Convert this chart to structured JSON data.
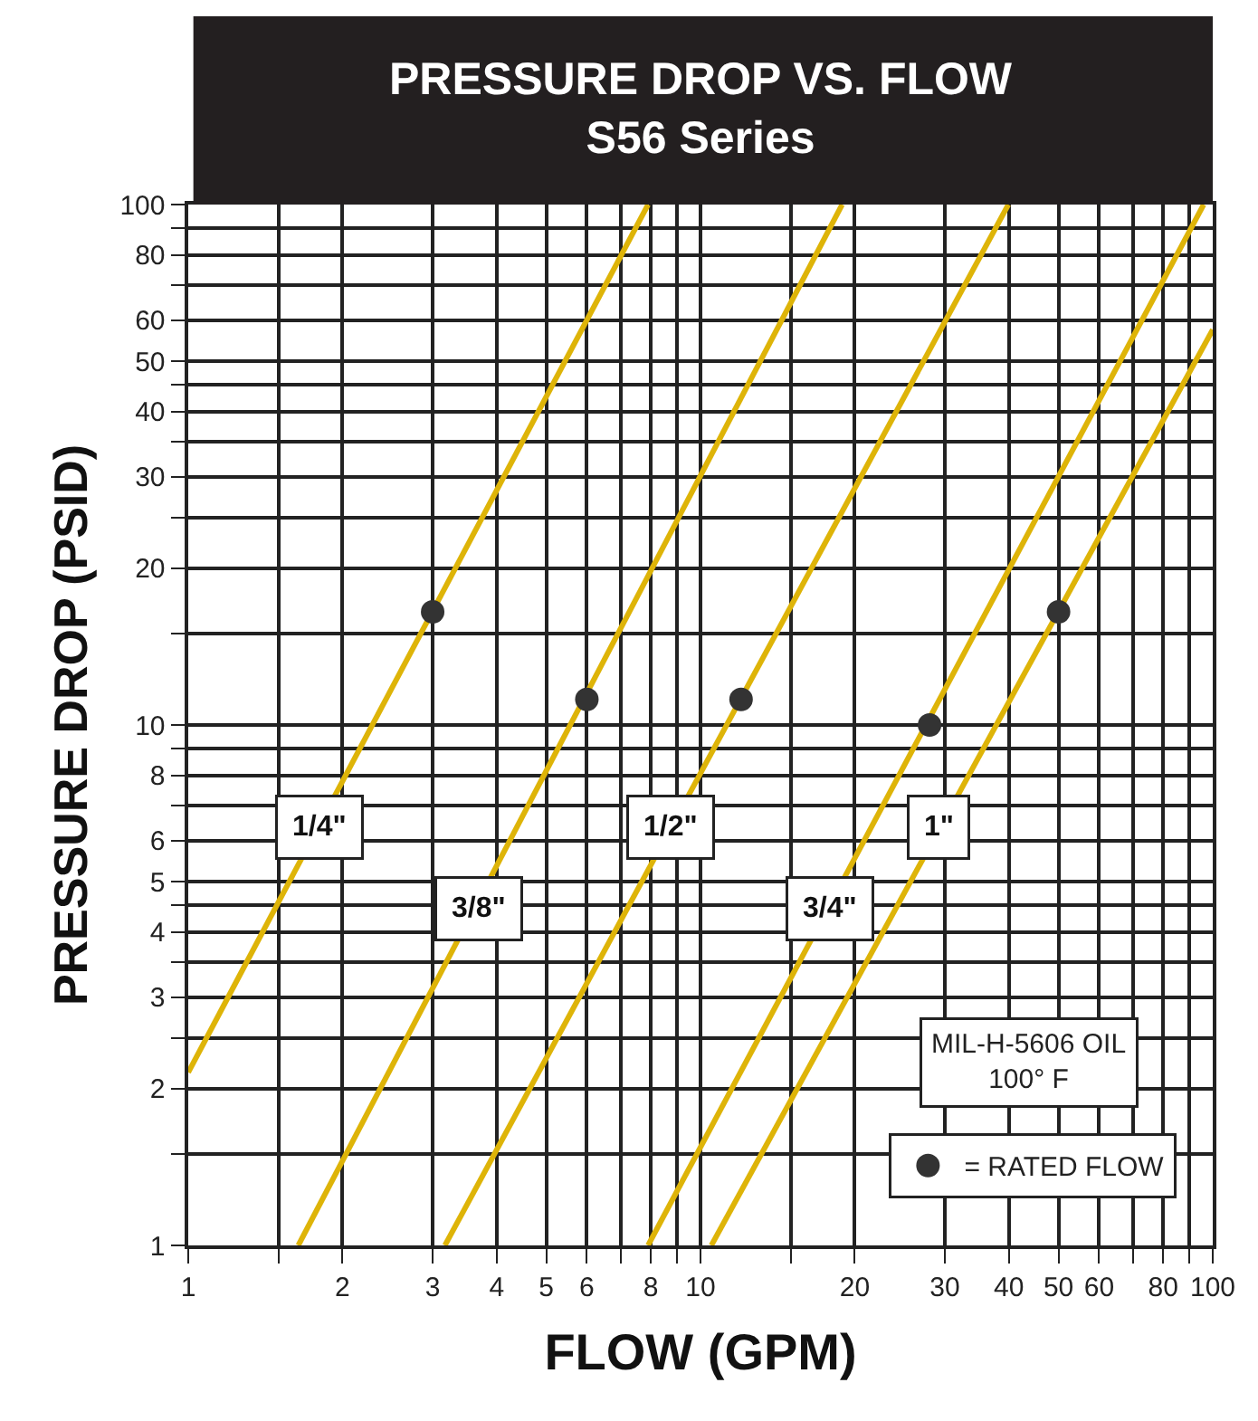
{
  "chart_data": {
    "type": "line",
    "title": "PRESSURE DROP VS. FLOW",
    "subtitle": "S56 Series",
    "xlabel": "FLOW (GPM)",
    "ylabel": "PRESSURE DROP (PSID)",
    "log": "xy",
    "grid": true,
    "legend": "bottom right",
    "xlim": [
      1,
      100
    ],
    "ylim": [
      1,
      100
    ],
    "xticks": [
      1,
      {
        "value": 1.5,
        "label": null
      },
      2,
      3,
      4,
      5,
      6,
      {
        "value": 7,
        "label": null
      },
      8,
      {
        "value": 9,
        "label": null
      },
      10,
      {
        "value": 15,
        "label": null
      },
      20,
      30,
      40,
      50,
      60,
      {
        "value": 70,
        "label": null
      },
      80,
      {
        "value": 90,
        "label": null
      },
      100
    ],
    "yticks": [
      1,
      {
        "value": 1.5,
        "label": null
      },
      2,
      {
        "value": 2.5,
        "label": null
      },
      3,
      {
        "value": 3.5,
        "label": null
      },
      4,
      {
        "value": 4.5,
        "label": null
      },
      5,
      6,
      {
        "value": 7,
        "label": null
      },
      8,
      {
        "value": 9,
        "label": null
      },
      10,
      {
        "value": 15,
        "label": null
      },
      20,
      {
        "value": 25,
        "label": null
      },
      30,
      {
        "value": 35,
        "label": null
      },
      40,
      {
        "value": 45,
        "label": null
      },
      50,
      60,
      {
        "value": 70,
        "label": null
      },
      80,
      {
        "value": 90,
        "label": null
      },
      100
    ],
    "series": [
      {
        "color": "#deb408",
        "x": [
          1,
          7.9
        ],
        "values": [
          2.15,
          100
        ]
      },
      {
        "color": "#deb408",
        "x": [
          1.64,
          18.9
        ],
        "values": [
          1,
          100
        ]
      },
      {
        "color": "#deb408",
        "x": [
          3.17,
          39.9
        ],
        "values": [
          1,
          100
        ]
      },
      {
        "color": "#deb408",
        "x": [
          7.9,
          96
        ],
        "values": [
          1,
          100
        ]
      },
      {
        "color": "#deb408",
        "x": [
          10.5,
          100
        ],
        "values": [
          1,
          57.5
        ]
      },
      {
        "type": "scatter",
        "name": "= RATED FLOW",
        "color": "#333333",
        "marker": "circle",
        "x": [
          3,
          6,
          12,
          28,
          50
        ],
        "values": [
          16.5,
          11.2,
          11.2,
          10,
          16.5
        ]
      }
    ],
    "annotations": [
      {
        "text": "1/4\"",
        "x": 1.8,
        "y": 6.36
      },
      {
        "text": "3/8\"",
        "x": 3.68,
        "y": 4.45
      },
      {
        "text": "1/2\"",
        "x": 8.72,
        "y": 6.36
      },
      {
        "text": "3/4\"",
        "x": 17.9,
        "y": 4.45
      },
      {
        "text": "1\"",
        "x": 29.1,
        "y": 6.36
      },
      "MIL-H-5606 OIL\n100° F"
    ]
  }
}
